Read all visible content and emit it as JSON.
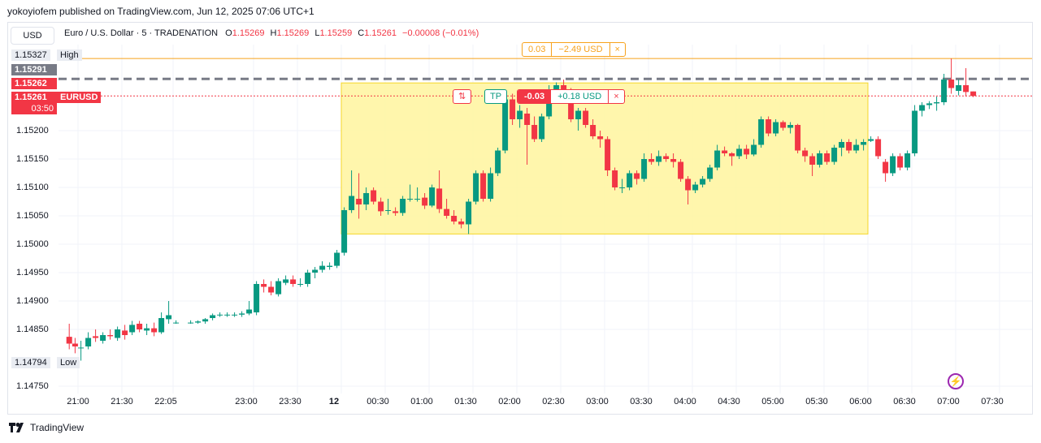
{
  "header": {
    "published": "yokoyiofem published on TradingView.com, Jun 12, 2025 07:06 UTC+1",
    "currency_button": "USD",
    "symbol": "Euro / U.S. Dollar · 5 · TRADENATION",
    "ohlc": [
      {
        "k": "O",
        "v": "1.15269"
      },
      {
        "k": "H",
        "v": "1.15269"
      },
      {
        "k": "L",
        "v": "1.15259"
      },
      {
        "k": "C",
        "v": "1.15261"
      }
    ],
    "change": "−0.00008 (−0.01%)"
  },
  "price_tags": {
    "high_value": "1.15327",
    "high_label": "High",
    "low_value": "1.14794",
    "low_label": "Low",
    "line1": "1.15291",
    "line2": "1.15262",
    "last_price": "1.15261",
    "symbol_tag": "EURUSD",
    "countdown": "03:50"
  },
  "alert_pill": {
    "left": "0.03",
    "right": "−2.49 USD",
    "close": "×"
  },
  "position_pill": {
    "icon": "⇅",
    "tp": "TP",
    "pnl": "-0.03",
    "usd": "+0.18 USD",
    "close": "×"
  },
  "brand": {
    "name": "TradingView"
  },
  "colors": {
    "up": "#089981",
    "down": "#f23645",
    "accent_orange": "#f7a21b",
    "position_fill": "#fff59d"
  },
  "chart_data": {
    "type": "candlestick",
    "symbol": "EURUSD",
    "timeframe": "5",
    "x_ticks": [
      "21:00",
      "21:30",
      "22:05",
      "23:00",
      "23:30",
      "12",
      "00:30",
      "01:00",
      "01:30",
      "02:00",
      "02:30",
      "03:00",
      "03:30",
      "04:00",
      "04:30",
      "05:00",
      "05:30",
      "06:00",
      "06:30",
      "07:00",
      "07:30"
    ],
    "y_ticks": [
      "1.15200",
      "1.15150",
      "1.15100",
      "1.15050",
      "1.15000",
      "1.14950",
      "1.14900",
      "1.14850",
      "1.14750"
    ],
    "ylim": [
      1.1472,
      1.1538
    ],
    "x_tick_minutes": [
      0,
      30,
      65,
      120,
      150,
      180,
      210,
      240,
      270,
      300,
      330,
      360,
      390,
      420,
      450,
      480,
      510,
      540,
      570,
      600,
      630
    ],
    "horizontal_lines": [
      {
        "name": "alert",
        "value": 1.15327,
        "color": "#f7a21b",
        "style": "solid"
      },
      {
        "name": "dashed",
        "value": 1.15291,
        "color": "#787b86",
        "style": "dashed"
      },
      {
        "name": "last",
        "value": 1.15261,
        "color": "#f23645",
        "style": "dotted"
      }
    ],
    "position_box": {
      "start_min": 180,
      "end_min": 540,
      "top": 1.15284,
      "bottom": 1.15018
    },
    "candles": [
      {
        "t": -6,
        "o": 1.14837,
        "h": 1.1486,
        "l": 1.14815,
        "c": 1.14825
      },
      {
        "t": -2,
        "o": 1.14825,
        "h": 1.14835,
        "l": 1.14808,
        "c": 1.1482
      },
      {
        "t": 2,
        "o": 1.14818,
        "h": 1.1483,
        "l": 1.14795,
        "c": 1.14818
      },
      {
        "t": 7,
        "o": 1.1482,
        "h": 1.14845,
        "l": 1.14815,
        "c": 1.14835
      },
      {
        "t": 12,
        "o": 1.14838,
        "h": 1.1485,
        "l": 1.14828,
        "c": 1.14835
      },
      {
        "t": 17,
        "o": 1.1483,
        "h": 1.14845,
        "l": 1.14825,
        "c": 1.1484
      },
      {
        "t": 22,
        "o": 1.1484,
        "h": 1.1485,
        "l": 1.14832,
        "c": 1.14838
      },
      {
        "t": 27,
        "o": 1.14835,
        "h": 1.14855,
        "l": 1.1483,
        "c": 1.1485
      },
      {
        "t": 32,
        "o": 1.14848,
        "h": 1.14858,
        "l": 1.14832,
        "c": 1.1484
      },
      {
        "t": 37,
        "o": 1.14845,
        "h": 1.14865,
        "l": 1.1484,
        "c": 1.14858
      },
      {
        "t": 42,
        "o": 1.1486,
        "h": 1.14865,
        "l": 1.14845,
        "c": 1.1485
      },
      {
        "t": 47,
        "o": 1.14848,
        "h": 1.1486,
        "l": 1.1484,
        "c": 1.14852
      },
      {
        "t": 52,
        "o": 1.14852,
        "h": 1.14862,
        "l": 1.14838,
        "c": 1.14845
      },
      {
        "t": 57,
        "o": 1.14845,
        "h": 1.1488,
        "l": 1.14842,
        "c": 1.1487
      },
      {
        "t": 62,
        "o": 1.14868,
        "h": 1.149,
        "l": 1.1486,
        "c": 1.14875
      },
      {
        "t": 67,
        "o": 1.14862,
        "h": 1.14866,
        "l": 1.1486,
        "c": 1.14862
      },
      {
        "t": 77,
        "o": 1.14862,
        "h": 1.14866,
        "l": 1.1486,
        "c": 1.14862
      },
      {
        "t": 82,
        "o": 1.14862,
        "h": 1.14866,
        "l": 1.1486,
        "c": 1.14864
      },
      {
        "t": 87,
        "o": 1.14864,
        "h": 1.1487,
        "l": 1.1486,
        "c": 1.14868
      },
      {
        "t": 92,
        "o": 1.1487,
        "h": 1.14878,
        "l": 1.14866,
        "c": 1.14875
      },
      {
        "t": 97,
        "o": 1.14876,
        "h": 1.1488,
        "l": 1.14872,
        "c": 1.14876
      },
      {
        "t": 102,
        "o": 1.14876,
        "h": 1.1488,
        "l": 1.14872,
        "c": 1.14876
      },
      {
        "t": 107,
        "o": 1.14876,
        "h": 1.1488,
        "l": 1.14872,
        "c": 1.14876
      },
      {
        "t": 112,
        "o": 1.14876,
        "h": 1.14882,
        "l": 1.14872,
        "c": 1.14878
      },
      {
        "t": 117,
        "o": 1.14878,
        "h": 1.149,
        "l": 1.14875,
        "c": 1.14885
      },
      {
        "t": 122,
        "o": 1.1488,
        "h": 1.14935,
        "l": 1.14875,
        "c": 1.1493
      },
      {
        "t": 127,
        "o": 1.1493,
        "h": 1.14938,
        "l": 1.14915,
        "c": 1.14925
      },
      {
        "t": 132,
        "o": 1.14925,
        "h": 1.14935,
        "l": 1.1491,
        "c": 1.14915
      },
      {
        "t": 137,
        "o": 1.14912,
        "h": 1.1494,
        "l": 1.14908,
        "c": 1.14935
      },
      {
        "t": 142,
        "o": 1.14932,
        "h": 1.14945,
        "l": 1.14928,
        "c": 1.14938
      },
      {
        "t": 147,
        "o": 1.14938,
        "h": 1.14945,
        "l": 1.14925,
        "c": 1.1493
      },
      {
        "t": 152,
        "o": 1.1493,
        "h": 1.1494,
        "l": 1.14925,
        "c": 1.1493
      },
      {
        "t": 157,
        "o": 1.1493,
        "h": 1.14955,
        "l": 1.14925,
        "c": 1.1495
      },
      {
        "t": 162,
        "o": 1.1495,
        "h": 1.1496,
        "l": 1.1494,
        "c": 1.14955
      },
      {
        "t": 167,
        "o": 1.14955,
        "h": 1.1497,
        "l": 1.1495,
        "c": 1.14962
      },
      {
        "t": 172,
        "o": 1.1496,
        "h": 1.14968,
        "l": 1.14955,
        "c": 1.14962
      },
      {
        "t": 177,
        "o": 1.14962,
        "h": 1.1499,
        "l": 1.14958,
        "c": 1.14985
      },
      {
        "t": 182,
        "o": 1.14985,
        "h": 1.15065,
        "l": 1.1498,
        "c": 1.1506
      },
      {
        "t": 187,
        "o": 1.1506,
        "h": 1.1513,
        "l": 1.15055,
        "c": 1.15085
      },
      {
        "t": 192,
        "o": 1.1508,
        "h": 1.15125,
        "l": 1.15045,
        "c": 1.1507
      },
      {
        "t": 197,
        "o": 1.1507,
        "h": 1.151,
        "l": 1.1506,
        "c": 1.1509
      },
      {
        "t": 202,
        "o": 1.15095,
        "h": 1.151,
        "l": 1.1507,
        "c": 1.15075
      },
      {
        "t": 207,
        "o": 1.15075,
        "h": 1.15082,
        "l": 1.1505,
        "c": 1.15058
      },
      {
        "t": 212,
        "o": 1.1506,
        "h": 1.1508,
        "l": 1.15052,
        "c": 1.1506
      },
      {
        "t": 217,
        "o": 1.15058,
        "h": 1.15065,
        "l": 1.1505,
        "c": 1.15055
      },
      {
        "t": 222,
        "o": 1.15055,
        "h": 1.15085,
        "l": 1.1505,
        "c": 1.1508
      },
      {
        "t": 227,
        "o": 1.1508,
        "h": 1.15105,
        "l": 1.15075,
        "c": 1.1508
      },
      {
        "t": 232,
        "o": 1.1508,
        "h": 1.151,
        "l": 1.15075,
        "c": 1.1508
      },
      {
        "t": 237,
        "o": 1.15082,
        "h": 1.1509,
        "l": 1.15062,
        "c": 1.15068
      },
      {
        "t": 242,
        "o": 1.15068,
        "h": 1.15105,
        "l": 1.15065,
        "c": 1.151
      },
      {
        "t": 247,
        "o": 1.15098,
        "h": 1.1513,
        "l": 1.15055,
        "c": 1.15062
      },
      {
        "t": 252,
        "o": 1.15062,
        "h": 1.1508,
        "l": 1.15045,
        "c": 1.1505
      },
      {
        "t": 257,
        "o": 1.1505,
        "h": 1.1506,
        "l": 1.15035,
        "c": 1.1504
      },
      {
        "t": 262,
        "o": 1.1504,
        "h": 1.15045,
        "l": 1.15028,
        "c": 1.15035
      },
      {
        "t": 267,
        "o": 1.15035,
        "h": 1.1508,
        "l": 1.15018,
        "c": 1.15075
      },
      {
        "t": 272,
        "o": 1.15075,
        "h": 1.1513,
        "l": 1.1507,
        "c": 1.15125
      },
      {
        "t": 277,
        "o": 1.15125,
        "h": 1.1513,
        "l": 1.15075,
        "c": 1.1508
      },
      {
        "t": 282,
        "o": 1.1508,
        "h": 1.15135,
        "l": 1.15075,
        "c": 1.15125
      },
      {
        "t": 287,
        "o": 1.15125,
        "h": 1.1517,
        "l": 1.1512,
        "c": 1.15165
      },
      {
        "t": 292,
        "o": 1.15165,
        "h": 1.15265,
        "l": 1.1516,
        "c": 1.15255
      },
      {
        "t": 297,
        "o": 1.15255,
        "h": 1.15265,
        "l": 1.1521,
        "c": 1.1522
      },
      {
        "t": 302,
        "o": 1.1522,
        "h": 1.15245,
        "l": 1.15205,
        "c": 1.15235
      },
      {
        "t": 307,
        "o": 1.1523,
        "h": 1.1524,
        "l": 1.1514,
        "c": 1.1521
      },
      {
        "t": 312,
        "o": 1.1521,
        "h": 1.15225,
        "l": 1.1518,
        "c": 1.15185
      },
      {
        "t": 317,
        "o": 1.15185,
        "h": 1.1523,
        "l": 1.1518,
        "c": 1.15225
      },
      {
        "t": 322,
        "o": 1.15225,
        "h": 1.1528,
        "l": 1.1522,
        "c": 1.1527
      },
      {
        "t": 327,
        "o": 1.1527,
        "h": 1.15285,
        "l": 1.1525,
        "c": 1.1528
      },
      {
        "t": 332,
        "o": 1.1528,
        "h": 1.1529,
        "l": 1.15262,
        "c": 1.15268
      },
      {
        "t": 337,
        "o": 1.15268,
        "h": 1.15275,
        "l": 1.15215,
        "c": 1.1522
      },
      {
        "t": 342,
        "o": 1.1522,
        "h": 1.1524,
        "l": 1.152,
        "c": 1.15235
      },
      {
        "t": 347,
        "o": 1.15235,
        "h": 1.1524,
        "l": 1.15205,
        "c": 1.1521
      },
      {
        "t": 352,
        "o": 1.1521,
        "h": 1.1522,
        "l": 1.15185,
        "c": 1.1519
      },
      {
        "t": 357,
        "o": 1.1519,
        "h": 1.152,
        "l": 1.1517,
        "c": 1.15185
      },
      {
        "t": 362,
        "o": 1.15185,
        "h": 1.1519,
        "l": 1.1512,
        "c": 1.1513
      },
      {
        "t": 367,
        "o": 1.1513,
        "h": 1.15135,
        "l": 1.15095,
        "c": 1.151
      },
      {
        "t": 372,
        "o": 1.151,
        "h": 1.15115,
        "l": 1.1509,
        "c": 1.151
      },
      {
        "t": 377,
        "o": 1.151,
        "h": 1.1513,
        "l": 1.15095,
        "c": 1.15125
      },
      {
        "t": 382,
        "o": 1.15125,
        "h": 1.1513,
        "l": 1.15105,
        "c": 1.15115
      },
      {
        "t": 387,
        "o": 1.15115,
        "h": 1.1516,
        "l": 1.1511,
        "c": 1.1515
      },
      {
        "t": 392,
        "o": 1.1515,
        "h": 1.1516,
        "l": 1.1514,
        "c": 1.15145
      },
      {
        "t": 397,
        "o": 1.15145,
        "h": 1.15165,
        "l": 1.15138,
        "c": 1.15155
      },
      {
        "t": 402,
        "o": 1.15155,
        "h": 1.1516,
        "l": 1.15145,
        "c": 1.1515
      },
      {
        "t": 407,
        "o": 1.1515,
        "h": 1.1516,
        "l": 1.15135,
        "c": 1.15145
      },
      {
        "t": 412,
        "o": 1.15145,
        "h": 1.1515,
        "l": 1.1511,
        "c": 1.15115
      },
      {
        "t": 417,
        "o": 1.15115,
        "h": 1.1512,
        "l": 1.1507,
        "c": 1.15095
      },
      {
        "t": 422,
        "o": 1.15095,
        "h": 1.1511,
        "l": 1.1509,
        "c": 1.15105
      },
      {
        "t": 427,
        "o": 1.15105,
        "h": 1.1512,
        "l": 1.151,
        "c": 1.15115
      },
      {
        "t": 432,
        "o": 1.15115,
        "h": 1.1514,
        "l": 1.1511,
        "c": 1.15135
      },
      {
        "t": 437,
        "o": 1.15135,
        "h": 1.15175,
        "l": 1.1513,
        "c": 1.15165
      },
      {
        "t": 442,
        "o": 1.15165,
        "h": 1.15172,
        "l": 1.15155,
        "c": 1.1516
      },
      {
        "t": 447,
        "o": 1.1516,
        "h": 1.15162,
        "l": 1.15138,
        "c": 1.15155
      },
      {
        "t": 452,
        "o": 1.15155,
        "h": 1.15175,
        "l": 1.1515,
        "c": 1.15168
      },
      {
        "t": 457,
        "o": 1.15168,
        "h": 1.15175,
        "l": 1.1515,
        "c": 1.15158
      },
      {
        "t": 462,
        "o": 1.15158,
        "h": 1.15185,
        "l": 1.15155,
        "c": 1.15175
      },
      {
        "t": 467,
        "o": 1.15175,
        "h": 1.15225,
        "l": 1.1517,
        "c": 1.1522
      },
      {
        "t": 472,
        "o": 1.1522,
        "h": 1.15225,
        "l": 1.1519,
        "c": 1.15195
      },
      {
        "t": 477,
        "o": 1.15195,
        "h": 1.1522,
        "l": 1.1519,
        "c": 1.15215
      },
      {
        "t": 482,
        "o": 1.15215,
        "h": 1.15218,
        "l": 1.152,
        "c": 1.15205
      },
      {
        "t": 487,
        "o": 1.15205,
        "h": 1.15215,
        "l": 1.15195,
        "c": 1.1521
      },
      {
        "t": 492,
        "o": 1.1521,
        "h": 1.15212,
        "l": 1.1516,
        "c": 1.15165
      },
      {
        "t": 497,
        "o": 1.15165,
        "h": 1.1517,
        "l": 1.15145,
        "c": 1.15155
      },
      {
        "t": 502,
        "o": 1.15155,
        "h": 1.1516,
        "l": 1.1512,
        "c": 1.1514
      },
      {
        "t": 507,
        "o": 1.1514,
        "h": 1.15165,
        "l": 1.15135,
        "c": 1.1516
      },
      {
        "t": 512,
        "o": 1.1516,
        "h": 1.15165,
        "l": 1.1514,
        "c": 1.15145
      },
      {
        "t": 517,
        "o": 1.15145,
        "h": 1.15175,
        "l": 1.1514,
        "c": 1.1517
      },
      {
        "t": 522,
        "o": 1.1517,
        "h": 1.15185,
        "l": 1.15155,
        "c": 1.1518
      },
      {
        "t": 527,
        "o": 1.1518,
        "h": 1.15185,
        "l": 1.1516,
        "c": 1.15165
      },
      {
        "t": 532,
        "o": 1.15165,
        "h": 1.15185,
        "l": 1.1516,
        "c": 1.15175
      },
      {
        "t": 537,
        "o": 1.15175,
        "h": 1.15185,
        "l": 1.15165,
        "c": 1.1518
      },
      {
        "t": 542,
        "o": 1.15182,
        "h": 1.1519,
        "l": 1.1518,
        "c": 1.15185
      },
      {
        "t": 547,
        "o": 1.15185,
        "h": 1.1519,
        "l": 1.1515,
        "c": 1.15155
      },
      {
        "t": 552,
        "o": 1.15145,
        "h": 1.1515,
        "l": 1.1511,
        "c": 1.15125
      },
      {
        "t": 557,
        "o": 1.15125,
        "h": 1.1516,
        "l": 1.1512,
        "c": 1.15155
      },
      {
        "t": 562,
        "o": 1.15155,
        "h": 1.1516,
        "l": 1.1513,
        "c": 1.15135
      },
      {
        "t": 567,
        "o": 1.15135,
        "h": 1.15165,
        "l": 1.1513,
        "c": 1.1516
      },
      {
        "t": 572,
        "o": 1.1516,
        "h": 1.15245,
        "l": 1.15155,
        "c": 1.15235
      },
      {
        "t": 577,
        "o": 1.15235,
        "h": 1.1525,
        "l": 1.15225,
        "c": 1.15245
      },
      {
        "t": 582,
        "o": 1.15245,
        "h": 1.15252,
        "l": 1.15238,
        "c": 1.15248
      },
      {
        "t": 587,
        "o": 1.15248,
        "h": 1.1526,
        "l": 1.15235,
        "c": 1.1525
      },
      {
        "t": 592,
        "o": 1.1525,
        "h": 1.153,
        "l": 1.15245,
        "c": 1.1529
      },
      {
        "t": 597,
        "o": 1.1529,
        "h": 1.15327,
        "l": 1.15265,
        "c": 1.15275
      },
      {
        "t": 602,
        "o": 1.1527,
        "h": 1.1529,
        "l": 1.15262,
        "c": 1.1528
      },
      {
        "t": 607,
        "o": 1.1528,
        "h": 1.1531,
        "l": 1.1526,
        "c": 1.15268
      },
      {
        "t": 612,
        "o": 1.15269,
        "h": 1.15269,
        "l": 1.15259,
        "c": 1.15261
      }
    ]
  }
}
